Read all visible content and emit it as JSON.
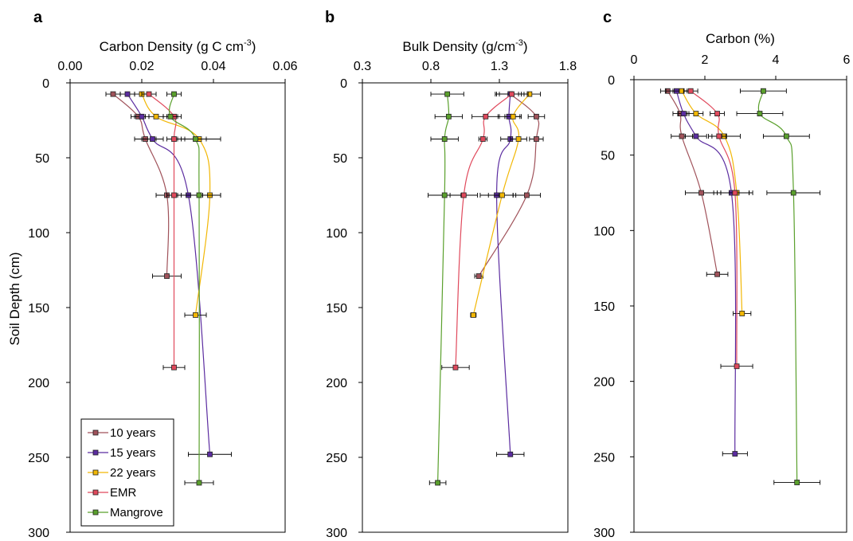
{
  "figure": {
    "y_axis_label": "Soil Depth (cm)"
  },
  "legend": {
    "entries": [
      {
        "name": "10 years",
        "color": "#a0525a"
      },
      {
        "name": "15 years",
        "color": "#5b2ca0"
      },
      {
        "name": "22 years",
        "color": "#f2b705"
      },
      {
        "name": "EMR",
        "color": "#e0495c"
      },
      {
        "name": "Mangrove",
        "color": "#5aa02c"
      }
    ]
  },
  "chart_data": [
    {
      "panel": "a",
      "type": "line",
      "xlabel": "Carbon Density (g C cm",
      "xlabel_sup": "-3",
      "xlabel_tail": ")",
      "xlim": [
        0,
        0.06
      ],
      "xticks": [
        "0.00",
        "0.02",
        "0.04",
        "0.06"
      ],
      "ylim": [
        0,
        300
      ],
      "yticks": [
        "0",
        "50",
        "100",
        "150",
        "200",
        "250",
        "300"
      ],
      "ylabel": "Soil Depth (cm)",
      "y_inverted": true,
      "x_axis_position": "top",
      "series": [
        {
          "name": "10 years",
          "color": "#a0525a",
          "points": [
            {
              "depth": 7.5,
              "value": 0.012,
              "err": 0.002
            },
            {
              "depth": 22.5,
              "value": 0.019,
              "err": 0.002
            },
            {
              "depth": 37.5,
              "value": 0.021,
              "err": 0.003
            },
            {
              "depth": 75,
              "value": 0.027,
              "err": 0.003
            },
            {
              "depth": 129,
              "value": 0.027,
              "err": 0.004
            }
          ]
        },
        {
          "name": "15 years",
          "color": "#5b2ca0",
          "points": [
            {
              "depth": 7.5,
              "value": 0.016,
              "err": 0.002
            },
            {
              "depth": 22.5,
              "value": 0.02,
              "err": 0.002
            },
            {
              "depth": 37.5,
              "value": 0.023,
              "err": 0.003
            },
            {
              "depth": 75,
              "value": 0.033,
              "err": 0.004
            },
            {
              "depth": 248,
              "value": 0.039,
              "err": 0.006
            }
          ]
        },
        {
          "name": "22 years",
          "color": "#f2b705",
          "points": [
            {
              "depth": 7.5,
              "value": 0.02,
              "err": 0.002
            },
            {
              "depth": 22.5,
              "value": 0.024,
              "err": 0.002
            },
            {
              "depth": 37.5,
              "value": 0.036,
              "err": 0.006
            },
            {
              "depth": 75,
              "value": 0.039,
              "err": 0.003
            },
            {
              "depth": 155,
              "value": 0.035,
              "err": 0.003
            }
          ]
        },
        {
          "name": "EMR",
          "color": "#e0495c",
          "points": [
            {
              "depth": 7.5,
              "value": 0.022,
              "err": 0.002
            },
            {
              "depth": 22.5,
              "value": 0.029,
              "err": 0.002
            },
            {
              "depth": 37.5,
              "value": 0.029,
              "err": 0.002
            },
            {
              "depth": 75,
              "value": 0.029,
              "err": 0.002
            },
            {
              "depth": 190,
              "value": 0.029,
              "err": 0.003
            }
          ]
        },
        {
          "name": "Mangrove",
          "color": "#5aa02c",
          "points": [
            {
              "depth": 7.5,
              "value": 0.029,
              "err": 0.002
            },
            {
              "depth": 22.5,
              "value": 0.028,
              "err": 0.002
            },
            {
              "depth": 37.5,
              "value": 0.035,
              "err": 0.003
            },
            {
              "depth": 75,
              "value": 0.036,
              "err": 0.006
            },
            {
              "depth": 267,
              "value": 0.036,
              "err": 0.004
            }
          ]
        }
      ]
    },
    {
      "panel": "b",
      "type": "line",
      "xlabel": "Bulk Density (g/cm",
      "xlabel_sup": "-3",
      "xlabel_tail": ")",
      "xlim": [
        0.3,
        1.8
      ],
      "xticks": [
        "0.3",
        "0.8",
        "1.3",
        "1.8"
      ],
      "ylim": [
        0,
        300
      ],
      "yticks": [
        "0",
        "50",
        "100",
        "150",
        "200",
        "250",
        "300"
      ],
      "y_inverted": true,
      "x_axis_position": "top",
      "series": [
        {
          "name": "10 years",
          "color": "#a0525a",
          "points": [
            {
              "depth": 7.5,
              "value": 1.38,
              "err": 0.08
            },
            {
              "depth": 22.5,
              "value": 1.57,
              "err": 0.06
            },
            {
              "depth": 37.5,
              "value": 1.57,
              "err": 0.05
            },
            {
              "depth": 75,
              "value": 1.5,
              "err": 0.1
            },
            {
              "depth": 129,
              "value": 1.15,
              "err": 0.03
            }
          ]
        },
        {
          "name": "15 years",
          "color": "#5b2ca0",
          "points": [
            {
              "depth": 7.5,
              "value": 1.38,
              "err": 0.1
            },
            {
              "depth": 22.5,
              "value": 1.37,
              "err": 0.08
            },
            {
              "depth": 37.5,
              "value": 1.38,
              "err": 0.07
            },
            {
              "depth": 75,
              "value": 1.28,
              "err": 0.12
            },
            {
              "depth": 248,
              "value": 1.38,
              "err": 0.1
            }
          ]
        },
        {
          "name": "22 years",
          "color": "#f2b705",
          "points": [
            {
              "depth": 7.5,
              "value": 1.52,
              "err": 0.08
            },
            {
              "depth": 22.5,
              "value": 1.4,
              "err": 0.06
            },
            {
              "depth": 37.5,
              "value": 1.44,
              "err": 0.06
            },
            {
              "depth": 75,
              "value": 1.32,
              "err": 0.1
            },
            {
              "depth": 155,
              "value": 1.11,
              "err": 0.02
            }
          ]
        },
        {
          "name": "EMR",
          "color": "#e0495c",
          "points": [
            {
              "depth": 7.5,
              "value": 1.39,
              "err": 0.12
            },
            {
              "depth": 22.5,
              "value": 1.2,
              "err": 0.1
            },
            {
              "depth": 37.5,
              "value": 1.18,
              "err": 0.03
            },
            {
              "depth": 75,
              "value": 1.04,
              "err": 0.1
            },
            {
              "depth": 190,
              "value": 0.98,
              "err": 0.1
            }
          ]
        },
        {
          "name": "Mangrove",
          "color": "#5aa02c",
          "points": [
            {
              "depth": 7.5,
              "value": 0.92,
              "err": 0.12
            },
            {
              "depth": 22.5,
              "value": 0.93,
              "err": 0.1
            },
            {
              "depth": 37.5,
              "value": 0.9,
              "err": 0.1
            },
            {
              "depth": 75,
              "value": 0.9,
              "err": 0.12
            },
            {
              "depth": 267,
              "value": 0.85,
              "err": 0.06
            }
          ]
        }
      ]
    },
    {
      "panel": "c",
      "type": "line",
      "xlabel": "Carbon (%)",
      "xlabel_sup": "",
      "xlabel_tail": "",
      "xlim": [
        0,
        6
      ],
      "xticks": [
        "0",
        "2",
        "4",
        "6"
      ],
      "ylim": [
        0,
        300
      ],
      "yticks": [
        "0",
        "50",
        "100",
        "150",
        "200",
        "250",
        "300"
      ],
      "y_inverted": true,
      "x_axis_position": "top",
      "series": [
        {
          "name": "10 years",
          "color": "#a0525a",
          "points": [
            {
              "depth": 7.5,
              "value": 0.95,
              "err": 0.2
            },
            {
              "depth": 22.5,
              "value": 1.3,
              "err": 0.2
            },
            {
              "depth": 37.5,
              "value": 1.35,
              "err": 0.3
            },
            {
              "depth": 75,
              "value": 1.9,
              "err": 0.45
            },
            {
              "depth": 129,
              "value": 2.35,
              "err": 0.3
            }
          ]
        },
        {
          "name": "15 years",
          "color": "#5b2ca0",
          "points": [
            {
              "depth": 7.5,
              "value": 1.2,
              "err": 0.3
            },
            {
              "depth": 22.5,
              "value": 1.4,
              "err": 0.15
            },
            {
              "depth": 37.5,
              "value": 1.75,
              "err": 0.3
            },
            {
              "depth": 75,
              "value": 2.75,
              "err": 0.5
            },
            {
              "depth": 248,
              "value": 2.85,
              "err": 0.35
            }
          ]
        },
        {
          "name": "22 years",
          "color": "#f2b705",
          "points": [
            {
              "depth": 7.5,
              "value": 1.35,
              "err": 0.25
            },
            {
              "depth": 22.5,
              "value": 1.75,
              "err": 0.2
            },
            {
              "depth": 37.5,
              "value": 2.55,
              "err": 0.45
            },
            {
              "depth": 75,
              "value": 2.9,
              "err": 0.45
            },
            {
              "depth": 155,
              "value": 3.05,
              "err": 0.25
            }
          ]
        },
        {
          "name": "EMR",
          "color": "#e0495c",
          "points": [
            {
              "depth": 7.5,
              "value": 1.6,
              "err": 0.2
            },
            {
              "depth": 22.5,
              "value": 2.35,
              "err": 0.2
            },
            {
              "depth": 37.5,
              "value": 2.4,
              "err": 0.2
            },
            {
              "depth": 75,
              "value": 2.85,
              "err": 0.4
            },
            {
              "depth": 190,
              "value": 2.9,
              "err": 0.45
            }
          ]
        },
        {
          "name": "Mangrove",
          "color": "#5aa02c",
          "points": [
            {
              "depth": 7.5,
              "value": 3.65,
              "err": 0.65
            },
            {
              "depth": 22.5,
              "value": 3.55,
              "err": 0.65
            },
            {
              "depth": 37.5,
              "value": 4.3,
              "err": 0.65
            },
            {
              "depth": 75,
              "value": 4.5,
              "err": 0.75
            },
            {
              "depth": 267,
              "value": 4.6,
              "err": 0.65
            }
          ]
        }
      ]
    }
  ]
}
